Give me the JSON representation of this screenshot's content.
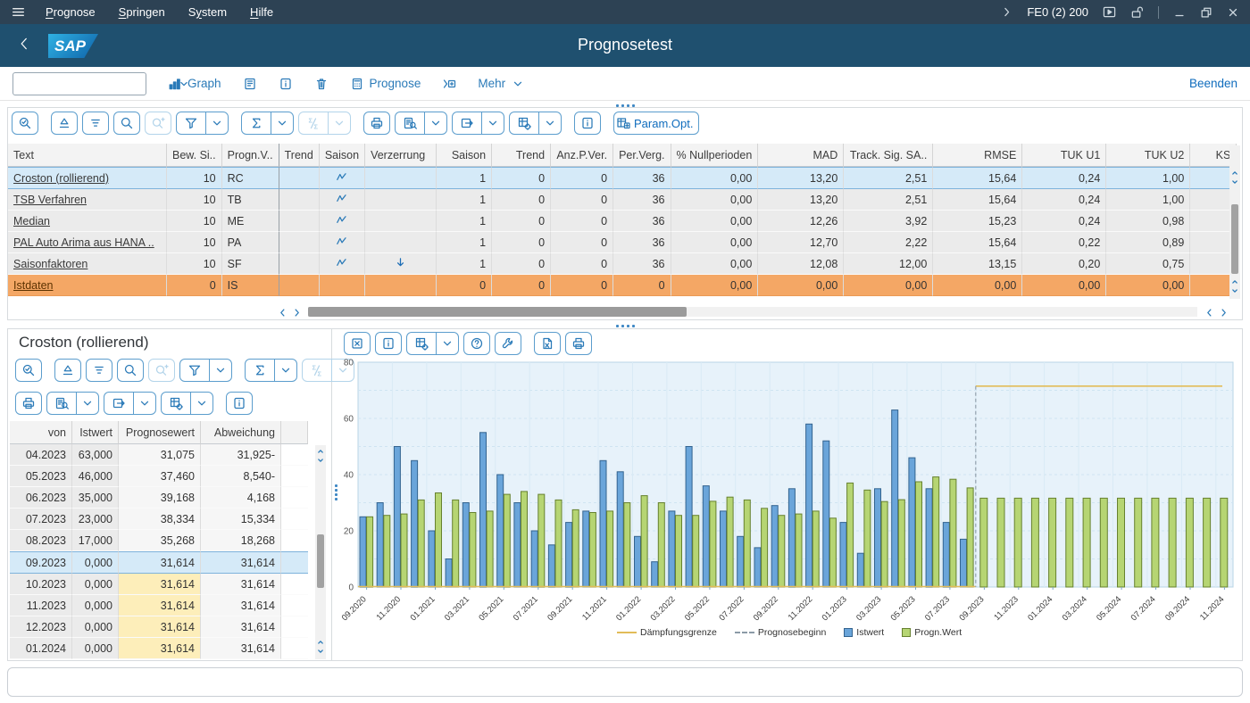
{
  "menubar": {
    "items": [
      {
        "label": "Prognose",
        "accel": 0
      },
      {
        "label": "Springen",
        "accel": 0
      },
      {
        "label": "System",
        "accel": 1
      },
      {
        "label": "Hilfe",
        "accel": 0
      }
    ],
    "system_info": "FE0 (2) 200"
  },
  "titlebar": {
    "title": "Prognosetest",
    "logo": "SAP"
  },
  "app_toolbar": {
    "combobox_value": "",
    "buttons": [
      {
        "name": "graph",
        "icon": "bar-chart",
        "label": "Graph"
      },
      {
        "name": "detail-screen",
        "icon": "doc-corners"
      },
      {
        "name": "info",
        "icon": "info"
      },
      {
        "name": "delete",
        "icon": "trash"
      },
      {
        "name": "prognose",
        "icon": "calculator",
        "label": "Prognose"
      },
      {
        "name": "insert-method",
        "icon": "insert-plus"
      },
      {
        "name": "mehr",
        "label": "Mehr",
        "chevron": true
      }
    ],
    "beenden_label": "Beenden"
  },
  "top_table": {
    "param_opt_label": "Param.Opt.",
    "columns": [
      "Text",
      "Bew. Si..",
      "Progn.V..",
      "Trend",
      "Saison",
      "Verzerrung",
      "Saison",
      "Trend",
      "Anz.P.Ver.",
      "Per.Verg.",
      "% Nullperioden",
      "MAD",
      "Track. Sig. SA..",
      "RMSE",
      "TUK U1",
      "TUK U2",
      "KS"
    ],
    "rows": [
      {
        "cells": [
          "Croston (rollierend)",
          "10",
          "RC",
          "",
          "zigzag",
          "",
          "1",
          "0",
          "0",
          "36",
          "0,00",
          "13,20",
          "2,51",
          "15,64",
          "0,24",
          "1,00",
          ""
        ],
        "state": "selected"
      },
      {
        "cells": [
          "TSB Verfahren",
          "10",
          "TB",
          "",
          "zigzag",
          "",
          "1",
          "0",
          "0",
          "36",
          "0,00",
          "13,20",
          "2,51",
          "15,64",
          "0,24",
          "1,00",
          ""
        ],
        "state": ""
      },
      {
        "cells": [
          "Median",
          "10",
          "ME",
          "",
          "zigzag",
          "",
          "1",
          "0",
          "0",
          "36",
          "0,00",
          "12,26",
          "3,92",
          "15,23",
          "0,24",
          "0,98",
          ""
        ],
        "state": ""
      },
      {
        "cells": [
          "PAL Auto Arima aus HANA ..",
          "10",
          "PA",
          "",
          "zigzag",
          "",
          "1",
          "0",
          "0",
          "36",
          "0,00",
          "12,70",
          "2,22",
          "15,64",
          "0,22",
          "0,89",
          ""
        ],
        "state": ""
      },
      {
        "cells": [
          "Saisonfaktoren",
          "10",
          "SF",
          "",
          "zigzag",
          "arrow-down",
          "1",
          "0",
          "0",
          "36",
          "0,00",
          "12,08",
          "12,00",
          "13,15",
          "0,20",
          "0,75",
          ""
        ],
        "state": ""
      },
      {
        "cells": [
          "Istdaten",
          "0",
          "IS",
          "",
          "",
          "",
          "0",
          "0",
          "0",
          "0",
          "0,00",
          "0,00",
          "0,00",
          "0,00",
          "0,00",
          "0,00",
          ""
        ],
        "state": "actual"
      }
    ]
  },
  "detail_table": {
    "title": "Croston (rollierend)",
    "columns": [
      "von",
      "Istwert",
      "Prognosewert",
      "Abweichung"
    ],
    "rows": [
      {
        "cells": [
          "04.2023",
          "63,000",
          "31,075",
          "31,925-"
        ],
        "state": ""
      },
      {
        "cells": [
          "05.2023",
          "46,000",
          "37,460",
          "8,540-"
        ],
        "state": ""
      },
      {
        "cells": [
          "06.2023",
          "35,000",
          "39,168",
          "4,168"
        ],
        "state": ""
      },
      {
        "cells": [
          "07.2023",
          "23,000",
          "38,334",
          "15,334"
        ],
        "state": ""
      },
      {
        "cells": [
          "08.2023",
          "17,000",
          "35,268",
          "18,268"
        ],
        "state": ""
      },
      {
        "cells": [
          "09.2023",
          "0,000",
          "31,614",
          "31,614"
        ],
        "state": "selected"
      },
      {
        "cells": [
          "10.2023",
          "0,000",
          "31,614",
          "31,614"
        ],
        "state": "forecast"
      },
      {
        "cells": [
          "11.2023",
          "0,000",
          "31,614",
          "31,614"
        ],
        "state": "forecast"
      },
      {
        "cells": [
          "12.2023",
          "0,000",
          "31,614",
          "31,614"
        ],
        "state": "forecast"
      },
      {
        "cells": [
          "01.2024",
          "0,000",
          "31,614",
          "31,614"
        ],
        "state": "forecast"
      }
    ]
  },
  "chart_data": {
    "type": "bar",
    "title": "",
    "ylim": [
      0,
      80
    ],
    "y_ticks": [
      0,
      20,
      40,
      60,
      80
    ],
    "grid": true,
    "legend_position": "bottom",
    "n_slots": 51,
    "forecast_start_index": 36,
    "x_tick_labels": [
      "09.2020",
      "11.2020",
      "01.2021",
      "03.2021",
      "05.2021",
      "07.2021",
      "09.2021",
      "11.2021",
      "01.2022",
      "03.2022",
      "05.2022",
      "07.2022",
      "09.2022",
      "11.2022",
      "01.2023",
      "03.2023",
      "05.2023",
      "07.2023",
      "09.2023",
      "11.2023",
      "01.2024",
      "03.2024",
      "05.2024",
      "07.2024",
      "09.2024",
      "11.2024"
    ],
    "series": [
      {
        "name": "Istwert",
        "color": "#6aa5da",
        "values": [
          25,
          30,
          50,
          45,
          20,
          10,
          30,
          55,
          40,
          30,
          20,
          15,
          23,
          27,
          45,
          41,
          18,
          9,
          27,
          50,
          36,
          27,
          18,
          14,
          29,
          35,
          58,
          52,
          23,
          12,
          35,
          63,
          46,
          35,
          23,
          17
        ]
      },
      {
        "name": "Progn.Wert",
        "color": "#b6d573",
        "values": [
          25,
          25.5,
          26,
          31,
          33.5,
          31,
          26.5,
          27,
          33,
          34,
          33,
          31,
          27.5,
          26.5,
          27,
          30,
          32.5,
          30,
          25.5,
          25.5,
          30.5,
          32,
          31,
          28,
          25.5,
          26,
          27,
          24.5,
          37,
          34.5,
          30.4,
          31.075,
          37.46,
          39.168,
          38.334,
          35.268,
          31.614,
          31.614,
          31.614,
          31.614,
          31.614,
          31.614,
          31.614,
          31.614,
          31.614,
          31.614,
          31.614,
          31.614,
          31.614,
          31.614,
          31.614
        ]
      }
    ],
    "daempfungsgrenze": {
      "label": "Dämpfungsgrenze",
      "value": 71.5,
      "color": "#e2bc58"
    },
    "prognosebeginn": {
      "label": "Prognosebeginn",
      "x_label": "09.2023"
    },
    "legend": [
      "Dämpfungsgrenze",
      "Prognosebeginn",
      "Istwert",
      "Progn.Wert"
    ]
  },
  "statusbar": {
    "message": ""
  }
}
